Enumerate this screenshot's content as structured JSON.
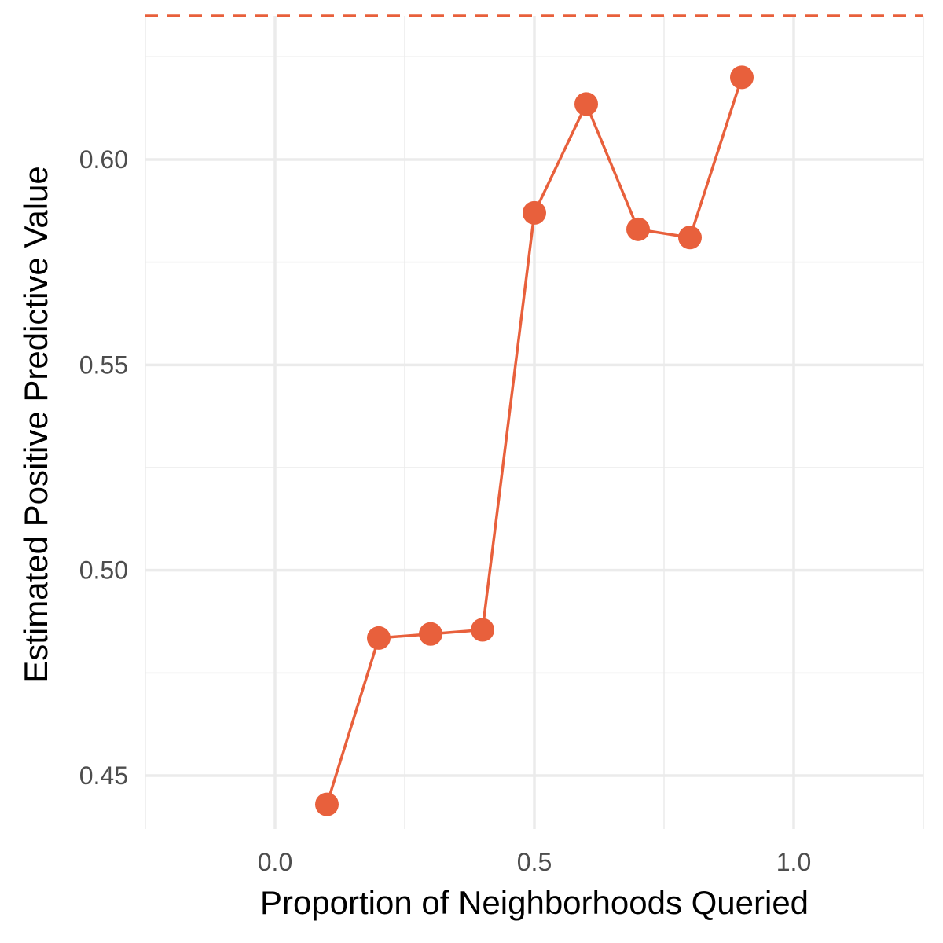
{
  "chart_data": {
    "type": "line",
    "title": "",
    "xlabel": "Proportion of Neighborhoods Queried",
    "ylabel": "Estimated Positive Predictive Value",
    "xlim": [
      -0.25,
      1.25
    ],
    "ylim": [
      0.437,
      0.635
    ],
    "x_ticks": [
      0.0,
      0.5,
      1.0
    ],
    "x_tick_labels": [
      "0.0",
      "0.5",
      "1.0"
    ],
    "y_ticks": [
      0.45,
      0.5,
      0.55,
      0.6
    ],
    "y_tick_labels": [
      "0.45",
      "0.50",
      "0.55",
      "0.60"
    ],
    "grid": true,
    "color": "#E8603C",
    "reference_line": {
      "y": 0.635,
      "style": "dashed"
    },
    "series": [
      {
        "x": [
          0.1,
          0.2,
          0.3,
          0.4,
          0.5,
          0.6,
          0.7,
          0.8,
          0.9
        ],
        "values": [
          0.443,
          0.4835,
          0.4845,
          0.4855,
          0.587,
          0.6135,
          0.583,
          0.581,
          0.62
        ]
      }
    ]
  }
}
